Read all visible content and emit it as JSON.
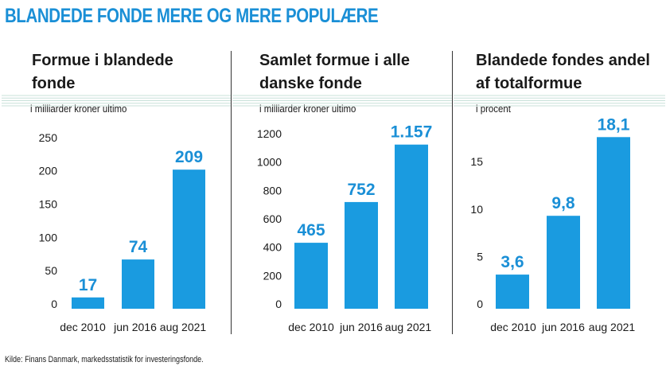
{
  "title": "BLANDEDE FONDE MERE OG MERE POPULÆRE",
  "source": "Kilde: Finans Danmark, markedsstatistik for investeringsfonde.",
  "colors": {
    "accent": "#1a8fd6",
    "bar": "#1a9be0",
    "grid": "#c8e0d9",
    "bg": "#ffffff"
  },
  "chart_data": [
    {
      "type": "bar",
      "title": [
        "Formue i blandede",
        "fonde"
      ],
      "subtitle": "i milliarder kroner ultimo",
      "categories": [
        "dec 2010",
        "jun 2016",
        "aug 2021"
      ],
      "values": [
        17,
        74,
        209
      ],
      "value_labels": [
        "17",
        "74",
        "209"
      ],
      "yticks": [
        0,
        50,
        100,
        150,
        200,
        250
      ],
      "ytick_labels": [
        "0",
        "50",
        "100",
        "150",
        "200",
        "250"
      ],
      "ylim": [
        0,
        275
      ]
    },
    {
      "type": "bar",
      "title": [
        "Samlet formue i alle",
        "danske fonde"
      ],
      "subtitle": "i milliarder kroner ultimo",
      "categories": [
        "dec 2010",
        "jun 2016",
        "aug 2021"
      ],
      "values": [
        465,
        752,
        1157
      ],
      "value_labels": [
        "465",
        "752",
        "1.157"
      ],
      "yticks": [
        0,
        200,
        400,
        600,
        800,
        1000,
        1200
      ],
      "ytick_labels": [
        "0",
        "200",
        "400",
        "600",
        "800",
        "1000",
        "1200"
      ],
      "ylim": [
        0,
        1290
      ]
    },
    {
      "type": "bar",
      "title": [
        "Blandede fondes andel",
        "af totalformue"
      ],
      "subtitle": "i procent",
      "categories": [
        "dec 2010",
        "jun 2016",
        "aug 2021"
      ],
      "values": [
        3.6,
        9.8,
        18.1
      ],
      "value_labels": [
        "3,6",
        "9,8",
        "18,1"
      ],
      "yticks": [
        0,
        5,
        10,
        15
      ],
      "ytick_labels": [
        "0",
        "5",
        "10",
        "15"
      ],
      "ylim": [
        0,
        19.3
      ]
    }
  ]
}
